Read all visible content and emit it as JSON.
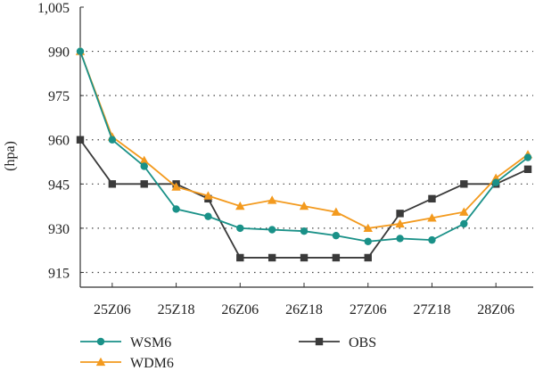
{
  "chart_data": {
    "type": "line",
    "ylabel": "(hpa)",
    "xlabel": "",
    "title": "",
    "ylim": [
      910,
      1005
    ],
    "yticks": [
      915,
      930,
      945,
      960,
      975,
      990,
      1005
    ],
    "ytick_labels": [
      "915",
      "930",
      "945",
      "960",
      "975",
      "990",
      "1,005"
    ],
    "xticks": [
      6,
      18,
      30,
      42,
      54,
      66,
      78
    ],
    "xtick_labels": [
      "25Z06",
      "25Z18",
      "26Z06",
      "26Z18",
      "27Z06",
      "27Z18",
      "28Z06"
    ],
    "x": [
      0,
      6,
      12,
      18,
      24,
      30,
      36,
      42,
      48,
      54,
      60,
      66,
      72,
      78,
      84
    ],
    "xlim": [
      0,
      85
    ],
    "grid": "horizontal dotted",
    "legend_position": "bottom",
    "series": [
      {
        "name": "WSM6",
        "color": "#1a9188",
        "marker": "circle",
        "values": [
          990,
          960,
          951,
          936.5,
          934,
          930,
          929.5,
          929,
          927.5,
          925.5,
          926.5,
          926,
          931.5,
          945.5,
          954
        ]
      },
      {
        "name": "WDM6",
        "color": "#f39a1e",
        "marker": "triangle",
        "values": [
          990,
          961,
          953,
          944,
          941,
          937.5,
          939.5,
          937.5,
          935.5,
          930,
          931.5,
          933.5,
          935.5,
          947,
          955
        ]
      },
      {
        "name": "OBS",
        "color": "#3a3a3a",
        "marker": "square",
        "values": [
          960,
          945,
          945,
          945,
          940,
          920,
          920,
          920,
          920,
          920,
          935,
          940,
          945,
          945,
          950
        ]
      }
    ]
  }
}
